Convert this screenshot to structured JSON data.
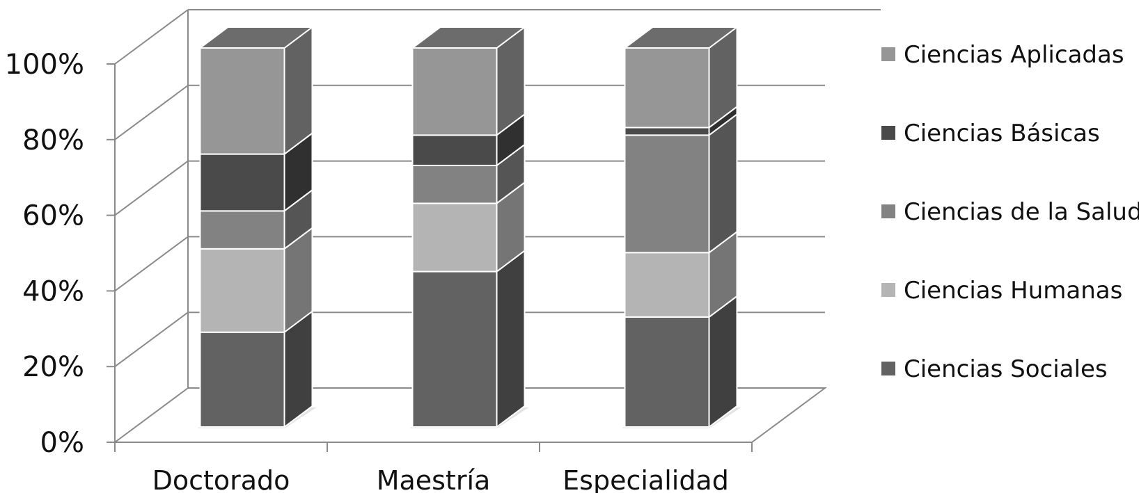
{
  "chart_data": {
    "type": "bar",
    "stacked": "percent",
    "three_d": true,
    "categories": [
      "Doctorado",
      "Maestría",
      "Especialidad"
    ],
    "y_ticks": [
      "0%",
      "20%",
      "40%",
      "60%",
      "80%",
      "100%"
    ],
    "ylim": [
      0,
      100
    ],
    "grid": true,
    "legend_position": "right",
    "series": [
      {
        "name": "Ciencias Sociales",
        "values": [
          25,
          41,
          29
        ],
        "color": "#626262"
      },
      {
        "name": "Ciencias Humanas",
        "values": [
          22,
          18,
          17
        ],
        "color": "#b4b4b4"
      },
      {
        "name": "Ciencias de la Salud",
        "values": [
          10,
          10,
          31
        ],
        "color": "#828282"
      },
      {
        "name": "Ciencias Básicas",
        "values": [
          15,
          8,
          2
        ],
        "color": "#4a4a4a"
      },
      {
        "name": "Ciencias Aplicadas",
        "values": [
          28,
          23,
          21
        ],
        "color": "#969696"
      }
    ]
  }
}
